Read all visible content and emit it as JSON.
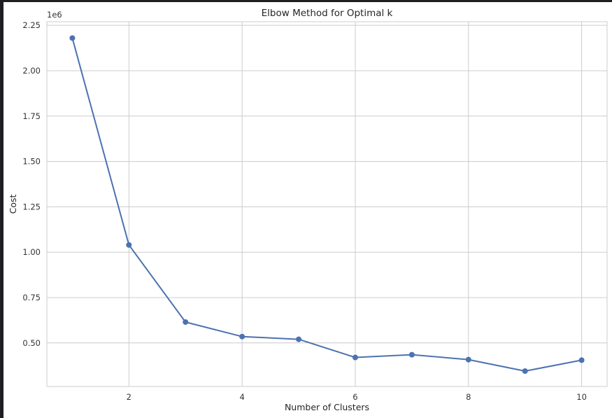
{
  "chart_data": {
    "type": "line",
    "title": "Elbow Method for Optimal k",
    "xlabel": "Number of Clusters",
    "ylabel": "Cost",
    "offset_text": "1e6",
    "x": [
      1,
      2,
      3,
      4,
      5,
      6,
      7,
      8,
      9,
      10
    ],
    "series": [
      {
        "values": [
          2180000,
          1040000,
          615000,
          535000,
          520000,
          420000,
          435000,
          408000,
          345000,
          405000
        ]
      }
    ],
    "xticks": [
      2,
      4,
      6,
      8,
      10
    ],
    "yticks": [
      500000,
      750000,
      1000000,
      1250000,
      1500000,
      1750000,
      2000000,
      2250000
    ],
    "ytick_labels": [
      "0.50",
      "0.75",
      "1.00",
      "1.25",
      "1.50",
      "1.75",
      "2.00",
      "2.25"
    ],
    "xlim": [
      0.55,
      10.45
    ],
    "ylim": [
      260000,
      2270000
    ],
    "grid": true,
    "line_color": "#4c72b0",
    "grid_color": "#cccccc",
    "axes_color": "#cccccc"
  }
}
